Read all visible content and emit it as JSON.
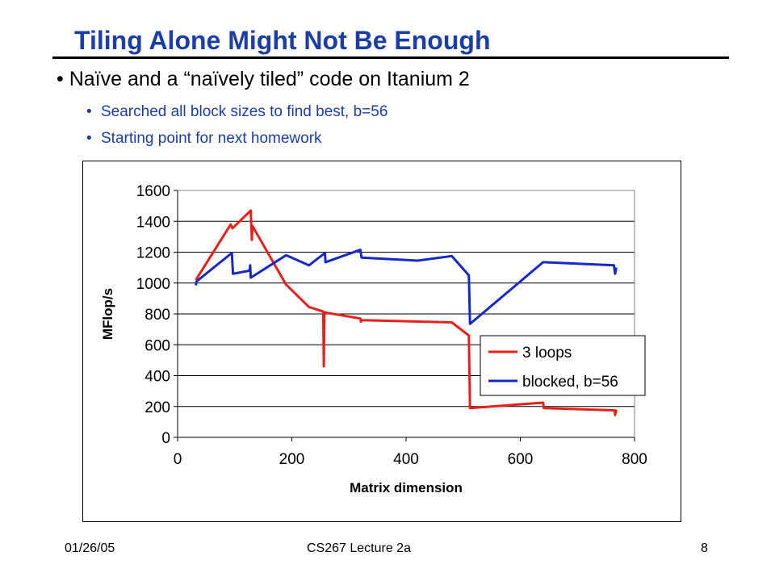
{
  "slide": {
    "title": "Tiling Alone Might Not Be Enough",
    "bullets": [
      "Naïve and a “naïvely tiled” code on Itanium 2",
      "Searched all block sizes to find best, b=56",
      "Starting point for next homework"
    ],
    "footer": {
      "date": "01/26/05",
      "course": "CS267 Lecture 2a",
      "page": "8"
    }
  },
  "colors": {
    "title": "#1a3da8",
    "red_series": "#e8201a",
    "blue_series": "#1528c8"
  },
  "chart_data": {
    "type": "line",
    "title": "",
    "xlabel": "Matrix dimension",
    "ylabel": "MFlop/s",
    "xlim": [
      0,
      800
    ],
    "ylim": [
      0,
      1600
    ],
    "xticks": [
      0,
      200,
      400,
      600,
      800
    ],
    "yticks": [
      0,
      200,
      400,
      600,
      800,
      1000,
      1200,
      1400,
      1600
    ],
    "grid": "horizontal",
    "legend_position": "inside-right",
    "series": [
      {
        "name": "3 loops",
        "color": "#e8201a",
        "points": [
          [
            32,
            1020
          ],
          [
            93,
            1380
          ],
          [
            96,
            1355
          ],
          [
            128,
            1470
          ],
          [
            130,
            1280
          ],
          [
            131,
            1370
          ],
          [
            190,
            990
          ],
          [
            230,
            845
          ],
          [
            255,
            815
          ],
          [
            256,
            460
          ],
          [
            257,
            810
          ],
          [
            320,
            770
          ],
          [
            321,
            750
          ],
          [
            322,
            760
          ],
          [
            480,
            745
          ],
          [
            510,
            660
          ],
          [
            512,
            190
          ],
          [
            640,
            225
          ],
          [
            641,
            190
          ],
          [
            765,
            175
          ],
          [
            766,
            145
          ],
          [
            768,
            180
          ]
        ]
      },
      {
        "name": "blocked, b=56",
        "color": "#1528c8",
        "points": [
          [
            32,
            985
          ],
          [
            33,
            1010
          ],
          [
            95,
            1195
          ],
          [
            97,
            1060
          ],
          [
            126,
            1080
          ],
          [
            127,
            1115
          ],
          [
            128,
            1035
          ],
          [
            190,
            1180
          ],
          [
            230,
            1115
          ],
          [
            258,
            1195
          ],
          [
            259,
            1135
          ],
          [
            320,
            1215
          ],
          [
            322,
            1165
          ],
          [
            420,
            1145
          ],
          [
            480,
            1175
          ],
          [
            510,
            1050
          ],
          [
            512,
            735
          ],
          [
            640,
            1135
          ],
          [
            764,
            1115
          ],
          [
            766,
            1060
          ],
          [
            768,
            1100
          ]
        ]
      }
    ]
  }
}
